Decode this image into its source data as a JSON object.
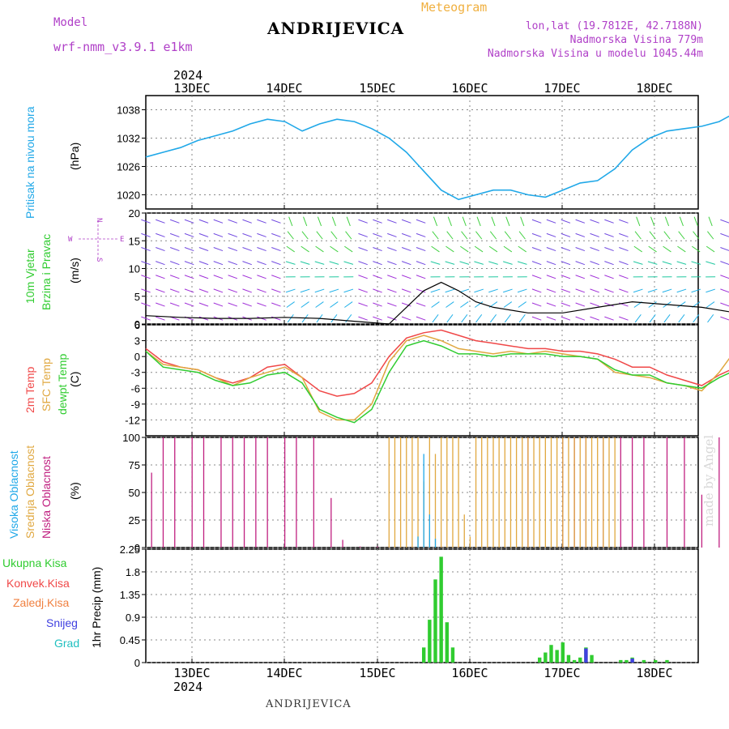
{
  "header": {
    "model_label": "Model",
    "model_name": "wrf-nmm_v3.9.1 e1km",
    "station": "ANDRIJEVICA",
    "title": "Meteogram",
    "lonlat": "lon,lat (19.7812E, 42.7188N)",
    "elevation": "Nadmorska Visina 779m",
    "model_elevation": "Nadmorska Visina u modelu 1045.44m",
    "watermark": "made by Angel",
    "footer_station": "ANDRIJEVICA"
  },
  "time_axis": {
    "year": "2024",
    "days": [
      "13DEC",
      "14DEC",
      "15DEC",
      "16DEC",
      "17DEC",
      "18DEC"
    ]
  },
  "panel_labels": {
    "pressure": "Pritisak na nivou mora",
    "pressure_unit": "(hPa)",
    "wind": "10m Vjetar",
    "wind2": "Brzina i Pravac",
    "wind_unit": "(m/s)",
    "compass_n": "N",
    "compass_e": "E",
    "compass_w": "W",
    "compass_s": "S",
    "temp_2m": "2m Temp",
    "temp_sfc": "SFC Temp",
    "temp_dew": "dewpt Temp",
    "temp_unit": "(C)",
    "cloud_high": "Visoka Oblacnost",
    "cloud_mid": "Srednja Oblacnost",
    "cloud_low": "Niska Oblacnost",
    "cloud_unit": "(%)",
    "precip_axis": "1hr Precip (mm)",
    "precip_total": "Ukupna Kisa",
    "precip_conv": "Konvek.Kisa",
    "precip_frozen": "Zaledj.Kisa",
    "precip_snow": "Snijeg",
    "precip_graupel": "Grad"
  },
  "colors": {
    "pressure": "#20a8e8",
    "t2m": "#f04848",
    "tsfc": "#e0a840",
    "tdew": "#30cc30",
    "cloud_high": "#20a8e8",
    "cloud_mid": "#e0a840",
    "cloud_low": "#c02080",
    "precip": "#30cc30",
    "snow": "#4040e0",
    "graupel": "#20c0c0"
  },
  "chart_data": [
    {
      "type": "line",
      "name": "pressure",
      "ylabel": "(hPa)",
      "ylim": [
        1017,
        1041
      ],
      "yticks": [
        1020,
        1026,
        1032,
        1038
      ],
      "x": [
        0,
        3,
        6,
        9,
        12,
        15,
        18,
        21,
        24,
        27,
        30,
        33,
        36,
        39,
        42,
        45,
        48,
        51,
        54,
        57,
        60,
        63,
        66,
        69,
        72,
        75,
        78,
        81,
        84,
        87,
        90,
        93,
        96,
        99,
        102,
        105,
        108,
        111,
        114,
        117,
        120,
        123,
        126,
        129,
        132,
        135,
        138,
        141,
        144,
        147,
        150,
        153,
        156,
        159
      ],
      "values": [
        1028,
        1029,
        1030,
        1031.5,
        1032.5,
        1033.5,
        1035,
        1036,
        1035.5,
        1033.5,
        1035,
        1036,
        1035.5,
        1034,
        1032,
        1029,
        1025,
        1021,
        1019,
        1020,
        1021,
        1021,
        1020,
        1019.5,
        1021,
        1022.5,
        1023,
        1025.5,
        1029.5,
        1032,
        1033.5,
        1034,
        1034.5,
        1035.5,
        1037.5,
        1036.5,
        1036,
        1037.5,
        1038,
        1039,
        1039,
        1038.5,
        1038.5,
        1038.5,
        1038,
        1034.5,
        1034,
        1034,
        1034,
        1034,
        1033.5,
        1033.5,
        1032,
        1030
      ]
    },
    {
      "type": "line",
      "name": "wind speed",
      "ylabel": "(m/s)",
      "ylim": [
        0,
        20
      ],
      "yticks": [
        0,
        5,
        10,
        15,
        20
      ],
      "x": [
        0,
        6,
        12,
        18,
        24,
        30,
        36,
        42,
        45,
        48,
        51,
        54,
        57,
        60,
        66,
        72,
        78,
        84,
        90,
        96,
        102,
        108,
        114,
        120,
        126,
        132,
        138,
        144,
        150,
        156,
        159
      ],
      "values": [
        1.5,
        1.2,
        1,
        1,
        1.2,
        1,
        0.5,
        0,
        3,
        6,
        7.5,
        6,
        4,
        3,
        2,
        2,
        3,
        4,
        3.5,
        3,
        2,
        1.5,
        1,
        1,
        1.5,
        2,
        2,
        2.5,
        2,
        2,
        2
      ]
    },
    {
      "type": "line",
      "name": "temperature",
      "ylabel": "(C)",
      "ylim": [
        -15,
        6
      ],
      "yticks": [
        -12,
        -9,
        -6,
        -3,
        0,
        3,
        6
      ],
      "x": [
        0,
        3,
        6,
        9,
        12,
        15,
        18,
        21,
        24,
        27,
        30,
        33,
        36,
        39,
        42,
        45,
        48,
        51,
        54,
        57,
        60,
        63,
        66,
        69,
        72,
        75,
        78,
        81,
        84,
        87,
        90,
        93,
        96,
        99,
        102,
        105,
        108,
        111,
        114,
        117,
        120,
        123,
        126,
        129,
        132,
        135,
        138,
        141,
        144,
        147,
        150,
        153,
        156,
        159
      ],
      "series": [
        {
          "name": "2m Temp",
          "values": [
            1.5,
            -1,
            -2,
            -2.5,
            -4,
            -5,
            -4,
            -2,
            -1.5,
            -4,
            -6.5,
            -7.5,
            -7,
            -5,
            0,
            3.5,
            4.5,
            5,
            4,
            3,
            2.5,
            2,
            1.5,
            1.5,
            1,
            1,
            0.5,
            -0.5,
            -2,
            -2,
            -3.5,
            -4.5,
            -5.5,
            -3.5,
            -2,
            -2,
            -3,
            -2.5,
            -2,
            -1.5,
            -1,
            -0.5,
            -1,
            -2,
            -2,
            0,
            2.5,
            1,
            -0.5,
            -0.5,
            -1,
            -0.5,
            -0.5,
            3
          ]
        },
        {
          "name": "SFC Temp",
          "values": [
            1,
            -1.5,
            -2,
            -2.5,
            -4,
            -5.5,
            -4,
            -3,
            -2,
            -4,
            -10.5,
            -12,
            -12,
            -9,
            -1,
            3,
            4,
            3,
            1.5,
            1,
            0.5,
            1,
            0.5,
            1,
            0.5,
            0,
            -0.5,
            -3,
            -3.5,
            -4,
            -5,
            -5.5,
            -6.5,
            -3,
            1.5,
            1,
            -3,
            -2,
            -2,
            -1,
            -0.5,
            -1.5,
            -3,
            -4,
            -4.5,
            0,
            3,
            -4,
            -5,
            -5.5,
            -5.5,
            -6,
            -6,
            4
          ]
        },
        {
          "name": "dewpt Temp",
          "values": [
            1,
            -2,
            -2.5,
            -3,
            -4.5,
            -5.5,
            -5,
            -3.5,
            -3,
            -5,
            -10,
            -11.5,
            -12.5,
            -10,
            -3,
            2,
            3,
            2,
            0.5,
            0.5,
            0,
            0.5,
            0.5,
            0.5,
            0,
            0,
            -0.5,
            -2.5,
            -3.5,
            -3.5,
            -5,
            -5.5,
            -6,
            -4,
            -2.5,
            -3,
            -5.5,
            -5,
            -4,
            -3.5,
            -2,
            -1.5,
            -1.5,
            -3,
            -3,
            -0.5,
            1.5,
            -1.5,
            -3,
            -3.5,
            -3.5,
            -3.5,
            -3.5,
            1.5
          ]
        }
      ]
    },
    {
      "type": "bar",
      "name": "cloud cover",
      "ylabel": "(%)",
      "ylim": [
        0,
        100
      ],
      "yticks": [
        0,
        25,
        50,
        75,
        100
      ],
      "series": [
        {
          "name": "Niska Oblacnost",
          "x": [
            1,
            3,
            5,
            8,
            10,
            13,
            15,
            17,
            19,
            21,
            24,
            26,
            29,
            32,
            34,
            37,
            40,
            42,
            44,
            46,
            48,
            51,
            54,
            59,
            66,
            72,
            74,
            76,
            79,
            82,
            84,
            86,
            90,
            93,
            96,
            99,
            102,
            104,
            106,
            109,
            114,
            120,
            125,
            127,
            131,
            134,
            138,
            142,
            148,
            151
          ],
          "values": [
            68,
            100,
            100,
            100,
            100,
            100,
            100,
            100,
            100,
            100,
            100,
            100,
            100,
            45,
            7,
            1,
            1,
            1,
            1,
            1,
            1,
            1,
            1,
            1,
            100,
            100,
            100,
            100,
            100,
            100,
            100,
            100,
            100,
            100,
            48,
            100,
            100,
            100,
            100,
            82,
            100,
            98,
            100,
            60,
            100,
            100,
            100,
            100,
            100,
            100
          ]
        },
        {
          "name": "Srednja Oblacnost",
          "x": [
            42,
            43,
            44,
            45,
            46,
            47,
            48,
            49,
            50,
            51,
            52,
            53,
            54,
            55,
            56,
            57,
            58,
            59,
            60,
            61,
            62,
            63,
            64,
            65,
            66,
            67,
            68,
            69,
            70,
            71,
            72,
            73,
            74,
            75,
            76,
            77,
            78,
            79,
            80,
            81
          ],
          "values": [
            100,
            100,
            100,
            100,
            100,
            100,
            60,
            100,
            85,
            100,
            100,
            100,
            100,
            30,
            10,
            100,
            100,
            100,
            100,
            100,
            100,
            100,
            100,
            100,
            100,
            100,
            100,
            100,
            100,
            100,
            100,
            100,
            100,
            100,
            100,
            100,
            100,
            100,
            100,
            100
          ]
        },
        {
          "name": "Visoka Oblacnost",
          "x": [
            47,
            48,
            49,
            50
          ],
          "values": [
            10,
            85,
            30,
            8
          ]
        }
      ]
    },
    {
      "type": "bar",
      "name": "precipitation",
      "ylabel": "1hr Precip (mm)",
      "ylim": [
        0,
        2.25
      ],
      "yticks": [
        0,
        0.45,
        0.9,
        1.35,
        1.8,
        2.25
      ],
      "series": [
        {
          "name": "Ukupna Kisa",
          "x": [
            48,
            49,
            50,
            51,
            52,
            53,
            68,
            69,
            70,
            71,
            72,
            73,
            74,
            75,
            76,
            77,
            82,
            83,
            84,
            86,
            88,
            90
          ],
          "values": [
            0.3,
            0.85,
            1.65,
            2.1,
            0.8,
            0.3,
            0.1,
            0.2,
            0.35,
            0.25,
            0.4,
            0.15,
            0.05,
            0.1,
            0.3,
            0.15,
            0.05,
            0.05,
            0.1,
            0.05,
            0.05,
            0.05
          ]
        },
        {
          "name": "Snijeg",
          "x": [
            76,
            84
          ],
          "values": [
            0.28,
            0.08
          ]
        }
      ]
    }
  ]
}
